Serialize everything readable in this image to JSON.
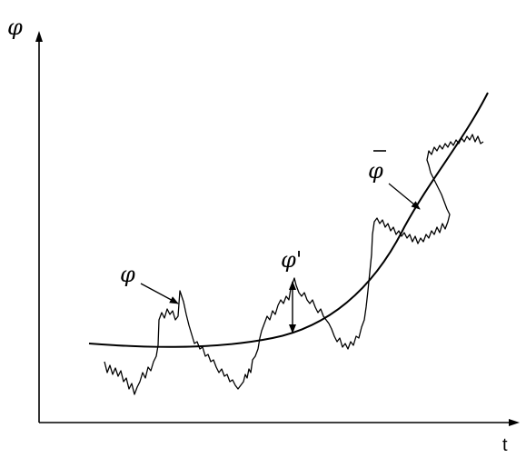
{
  "diagram": {
    "y_axis_label": "φ",
    "x_axis_label": "t",
    "labels": {
      "instantaneous": "φ",
      "fluctuation": "φ'",
      "mean": "φ"
    },
    "elements": [
      "mean-curve",
      "instantaneous-signal",
      "fluctuation-arrow"
    ],
    "colors": {
      "line": "#000000",
      "background": "#ffffff"
    }
  }
}
